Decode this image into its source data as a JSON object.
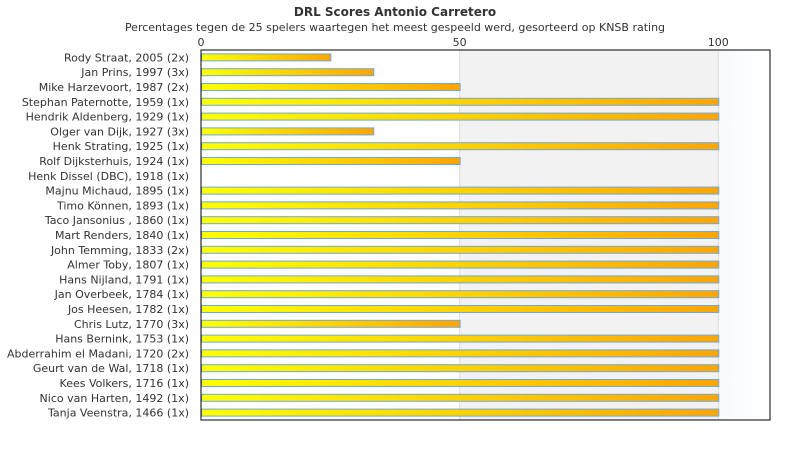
{
  "chart_data": {
    "type": "bar",
    "orientation": "horizontal",
    "title": "DRL Scores Antonio Carretero",
    "subtitle": "Percentages tegen de 25 spelers waartegen het meest gespeeld werd, gesorteerd op KNSB rating",
    "xlim": [
      0,
      110
    ],
    "xticks": [
      0,
      50,
      100
    ],
    "grid": true,
    "categories": [
      "Rody Straat, 2005 (2x)",
      "Jan Prins, 1997 (3x)",
      "Mike Harzevoort, 1987 (2x)",
      "Stephan Paternotte, 1959 (1x)",
      "Hendrik Aldenberg, 1929 (1x)",
      "Olger van Dijk, 1927 (3x)",
      "Henk Strating, 1925 (1x)",
      "Rolf Dijksterhuis, 1924 (1x)",
      "Henk Dissel (DBC), 1918 (1x)",
      "Majnu Michaud, 1895 (1x)",
      "Timo Können, 1893 (1x)",
      "Taco Jansonius , 1860 (1x)",
      "Mart Renders, 1840 (1x)",
      "John Temming, 1833 (2x)",
      "Almer Toby, 1807 (1x)",
      "Hans Nijland, 1791 (1x)",
      "Jan Overbeek, 1784 (1x)",
      "Jos Heesen, 1782 (1x)",
      "Chris Lutz, 1770 (3x)",
      "Hans Bernink, 1753 (1x)",
      "Abderrahim el Madani, 1720 (2x)",
      "Geurt van de Wal, 1718 (1x)",
      "Kees Volkers, 1716 (1x)",
      "Nico van Harten, 1492 (1x)",
      "Tanja Veenstra, 1466 (1x)"
    ],
    "values": [
      25,
      33.3,
      50,
      100,
      100,
      33.3,
      100,
      50,
      0,
      100,
      100,
      100,
      100,
      100,
      100,
      100,
      100,
      100,
      50,
      100,
      100,
      100,
      100,
      100,
      100
    ],
    "colors": {
      "bar_start": "#ffff00",
      "bar_end": "#ffa500",
      "bar_border": "#6fa8dc",
      "band_mid": "#f2f2f2",
      "band_high": "#f5f9fc"
    }
  }
}
